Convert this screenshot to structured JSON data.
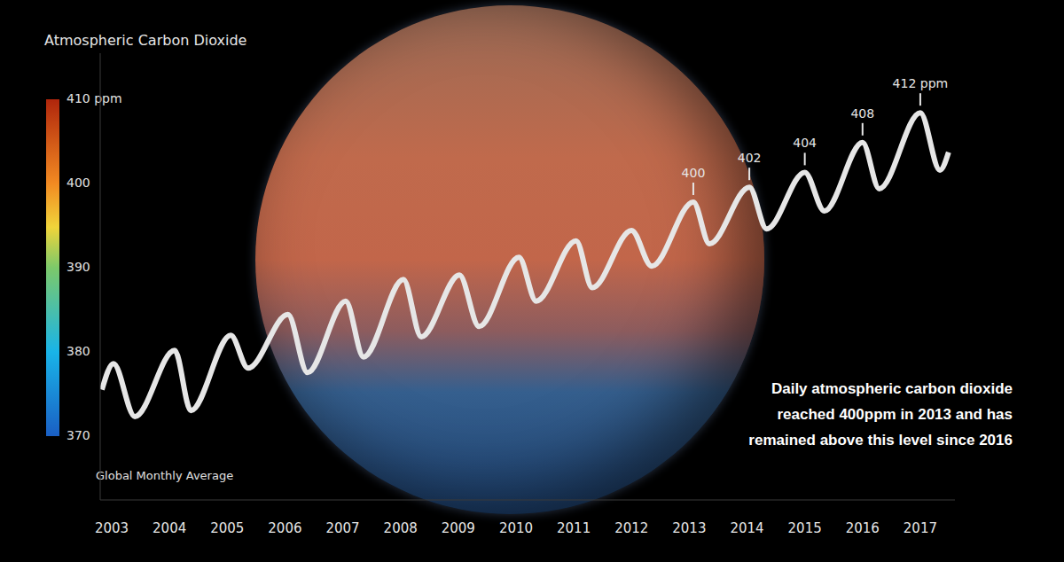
{
  "chart_data": {
    "type": "line",
    "title": "Atmospheric Carbon Dioxide",
    "subtitle": "Global Monthly Average",
    "x": [
      2002.83,
      2003.03,
      2003.4,
      2004.09,
      2004.37,
      2005.06,
      2005.36,
      2006.05,
      2006.39,
      2007.05,
      2007.36,
      2008.05,
      2008.36,
      2009.02,
      2009.36,
      2010.05,
      2010.35,
      2011.04,
      2011.32,
      2012.0,
      2012.35,
      2013.07,
      2013.35,
      2014.04,
      2014.34,
      2015.0,
      2015.34,
      2016.0,
      2016.29,
      2017.0,
      2017.34,
      2017.49
    ],
    "values": [
      374.8,
      378.3,
      371.2,
      380.1,
      372.0,
      382.1,
      377.7,
      384.9,
      377.1,
      386.7,
      379.2,
      389.6,
      381.9,
      390.2,
      383.3,
      392.6,
      386.7,
      394.8,
      388.5,
      396.2,
      391.4,
      400,
      394.4,
      402,
      396.4,
      404,
      398.8,
      408,
      401.8,
      412,
      404.3,
      406.7
    ],
    "color": "#e6e6e6",
    "xlim": [
      2002.8,
      2017.6
    ],
    "xticks": [
      2003,
      2004,
      2005,
      2006,
      2007,
      2008,
      2009,
      2010,
      2011,
      2012,
      2013,
      2014,
      2015,
      2016,
      2017
    ],
    "ylim": [
      360,
      420
    ],
    "tick_labels": "x",
    "grid": false,
    "annotations": [
      {
        "x": 2013.07,
        "y": 400,
        "label": "400"
      },
      {
        "x": 2014.04,
        "y": 402,
        "label": "402"
      },
      {
        "x": 2015.0,
        "y": 404,
        "label": "404"
      },
      {
        "x": 2016.0,
        "y": 408,
        "label": "408"
      },
      {
        "x": 2017.0,
        "y": 412,
        "label": "412 ppm"
      }
    ],
    "colorbar": {
      "range": [
        370,
        410
      ],
      "ticks": [
        370,
        380,
        390,
        400,
        {
          "value": 410,
          "label": "410 ppm"
        }
      ]
    },
    "note": [
      "Daily atmospheric carbon dioxide",
      "reached 400ppm in 2013 and has",
      "remained above this level since 2016"
    ]
  }
}
